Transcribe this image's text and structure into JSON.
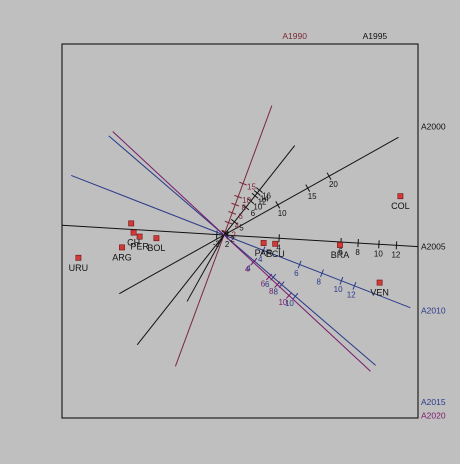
{
  "chart_data": {
    "type": "scatter",
    "colors": {
      "background": "#bfbfbf",
      "frame": "#000000",
      "point": "#d23a3a",
      "point_stroke": "#6e1010",
      "text": "#111111"
    },
    "points": [
      {
        "label": "URU",
        "x": -3.64,
        "y": -0.57
      },
      {
        "label": "ARG",
        "x": -2.55,
        "y": -0.31
      },
      {
        "label": "BOL",
        "x": -1.69,
        "y": -0.08
      },
      {
        "label": "PER",
        "x": -2.11,
        "y": -0.04
      },
      {
        "label": "CH",
        "x": -2.26,
        "y": 0.06
      },
      {
        "label": "",
        "x": -2.32,
        "y": 0.29
      },
      {
        "label": "PAR",
        "x": 0.99,
        "y": -0.2
      },
      {
        "label": "ECU",
        "x": 1.28,
        "y": -0.22
      },
      {
        "label": "BRA",
        "x": 2.9,
        "y": -0.25
      },
      {
        "label": "VEN",
        "x": 3.89,
        "y": -1.19
      },
      {
        "label": "COL",
        "x": 4.41,
        "y": 0.97
      }
    ],
    "axes": [
      {
        "name": "A1990",
        "color": "#7a2a3a",
        "direction": [
          0.37,
          1.0
        ],
        "neg_extent": 3.5,
        "pos_extent": 3.45,
        "ticks": [
          {
            "value": "2",
            "t": 0.09
          },
          {
            "value": "4",
            "t": 0.33
          },
          {
            "value": "6",
            "t": 0.59
          },
          {
            "value": "8",
            "t": 0.81
          },
          {
            "value": "10",
            "t": 1.02
          },
          {
            "value": "15",
            "t": 1.37
          }
        ]
      },
      {
        "name": "A1995",
        "color": "#111111",
        "direction": [
          0.79,
          1.0
        ],
        "neg_extent": 3.5,
        "pos_extent": 2.85,
        "ticks": [
          {
            "value": "2",
            "t": 0.05
          },
          {
            "value": "5",
            "t": 0.42
          },
          {
            "value": "6",
            "t": 0.88
          },
          {
            "value": "10",
            "t": 1.08
          },
          {
            "value": "12",
            "t": 1.25
          },
          {
            "value": "14",
            "t": 1.34
          },
          {
            "value": "16",
            "t": 1.43
          }
        ]
      },
      {
        "name": "A2000",
        "color": "#111111",
        "direction": [
          1.0,
          0.56
        ],
        "neg_extent": 3.0,
        "pos_extent": 5.0,
        "ticks": [
          {
            "value": "10",
            "t": 1.54
          },
          {
            "value": "15",
            "t": 2.4
          },
          {
            "value": "20",
            "t": 3.01
          }
        ]
      },
      {
        "name": "A2005",
        "color": "#111111",
        "direction": [
          1.0,
          -0.06
        ],
        "neg_extent": 4.5,
        "pos_extent": 5.0,
        "ticks": [
          {
            "value": "-2",
            "t": -0.18
          },
          {
            "value": "2",
            "t": 0.09
          },
          {
            "value": "4",
            "t": 1.38
          },
          {
            "value": "6",
            "t": 2.93
          },
          {
            "value": "8",
            "t": 3.36
          },
          {
            "value": "10",
            "t": 3.88
          },
          {
            "value": "12",
            "t": 4.32
          }
        ]
      },
      {
        "name": "A2010",
        "color": "#2a3a8a",
        "direction": [
          1.0,
          -0.39
        ],
        "neg_extent": 4.1,
        "pos_extent": 5.0,
        "ticks": [
          {
            "value": "4",
            "t": 1.06
          },
          {
            "value": "6",
            "t": 2.03
          },
          {
            "value": "8",
            "t": 2.63
          },
          {
            "value": "10",
            "t": 3.15
          },
          {
            "value": "12",
            "t": 3.5
          }
        ]
      },
      {
        "name": "A2015",
        "color": "#2a3a8a",
        "direction": [
          1.0,
          -0.86
        ],
        "neg_extent": 3.8,
        "pos_extent": 5.0,
        "ticks": [
          {
            "value": "4",
            "t": 1.0
          },
          {
            "value": "6",
            "t": 1.62
          },
          {
            "value": "8",
            "t": 1.9
          },
          {
            "value": "10",
            "t": 2.35
          }
        ]
      },
      {
        "name": "A2020",
        "color": "#7a1a6a",
        "direction": [
          1.0,
          -0.93
        ],
        "neg_extent": 3.8,
        "pos_extent": 5.0,
        "ticks": [
          {
            "value": "4",
            "t": 1.0
          },
          {
            "value": "6",
            "t": 1.54
          },
          {
            "value": "8",
            "t": 1.82
          },
          {
            "value": "10",
            "t": 2.22
          }
        ]
      },
      {
        "name": "",
        "color": "#111111",
        "direction": [
          1.0,
          1.8
        ],
        "neg_extent": 1.9,
        "pos_extent": 0.0,
        "ticks": []
      }
    ]
  }
}
